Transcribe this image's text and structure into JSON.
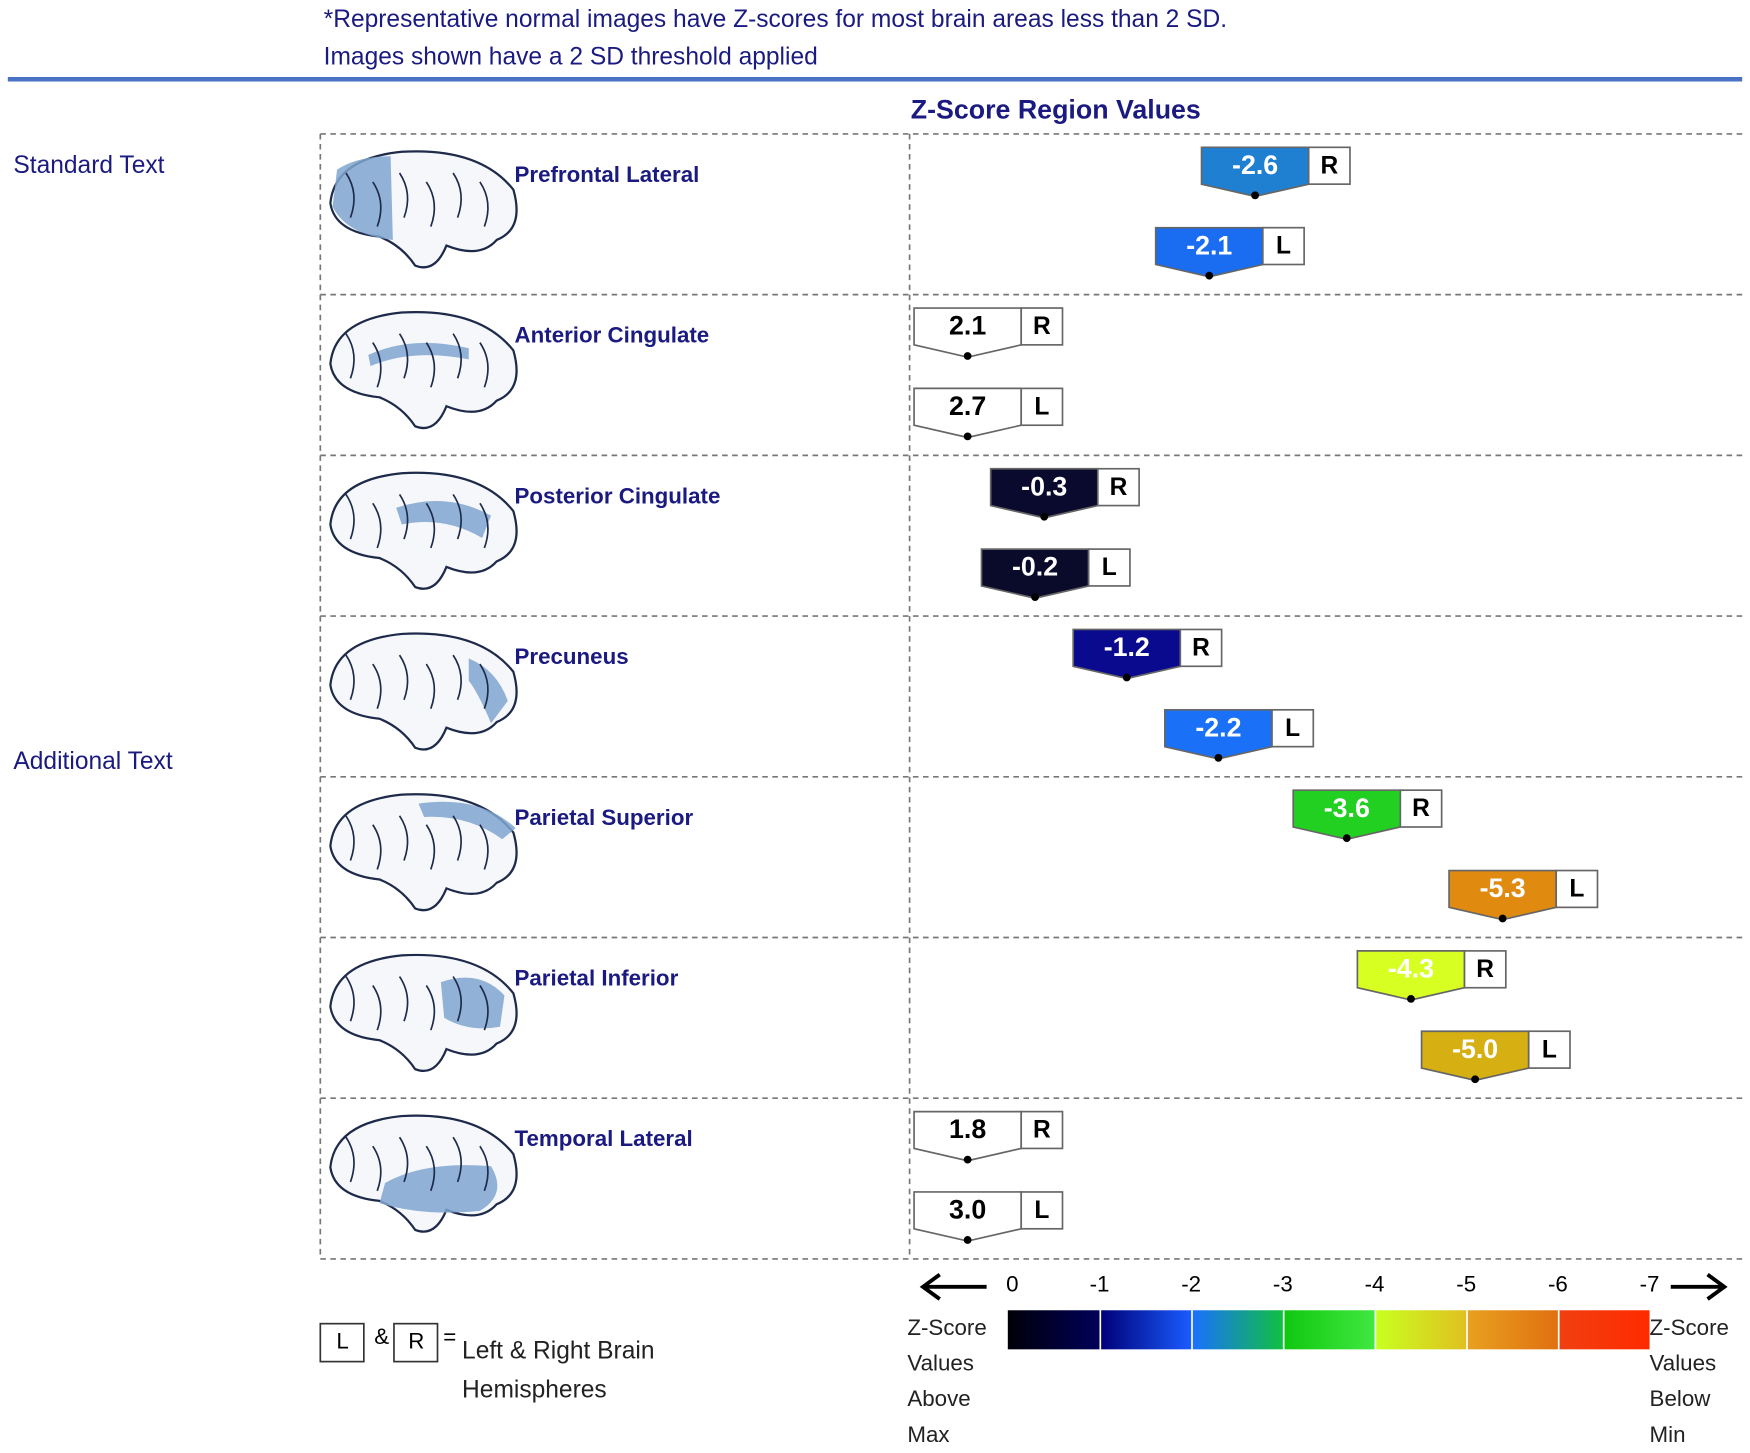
{
  "chart_data": {
    "type": "marker",
    "notes": [
      "*Representative normal images have Z-scores for most brain areas less than 2 SD.",
      "Images shown have a 2 SD threshold applied"
    ],
    "side_labels": [
      "Standard Text",
      "Additional Text"
    ],
    "title": "Z-Score Region Values",
    "categories": [
      "Prefrontal Lateral",
      "Anterior Cingulate",
      "Posterior Cingulate",
      "Precuneus",
      "Parietal Superior",
      "Parietal Inferior",
      "Temporal Lateral"
    ],
    "series": [
      {
        "name": "R",
        "values": [
          -2.6,
          2.1,
          -0.3,
          -1.2,
          -3.6,
          -4.3,
          1.8
        ],
        "value_labels": [
          "-2.6",
          "2.1",
          "-0.3",
          "-1.2",
          "-3.6",
          "-4.3",
          "1.8"
        ],
        "colors": [
          "#1f80d2",
          "#ffffff",
          "#0a0a2e",
          "#0a0a8e",
          "#22d022",
          "#d8ff22",
          "#ffffff"
        ]
      },
      {
        "name": "L",
        "values": [
          -2.1,
          2.7,
          -0.2,
          -2.2,
          -5.3,
          -5.0,
          3.0
        ],
        "value_labels": [
          "-2.1",
          "2.7",
          "-0.2",
          "-2.2",
          "-5.3",
          "-5.0",
          "3.0"
        ],
        "colors": [
          "#1a6cf0",
          "#ffffff",
          "#0a0a2a",
          "#1a70f6",
          "#e08a10",
          "#d6b012",
          "#ffffff"
        ]
      }
    ],
    "xlim": [
      0,
      -7
    ],
    "xticks": [
      0,
      -1,
      -2,
      -3,
      -4,
      -5,
      -6,
      -7
    ],
    "colorbar": [
      [
        "#000008",
        "#00005a"
      ],
      [
        "#00007a",
        "#1a5cff"
      ],
      [
        "#1a70ff",
        "#10c040"
      ],
      [
        "#10c810",
        "#40e840"
      ],
      [
        "#c8ff20",
        "#e0c020"
      ],
      [
        "#e8a020",
        "#e07010"
      ],
      [
        "#f04010",
        "#ff2a00"
      ]
    ],
    "colorbar_labels": [
      "Z-Score Values Above Max",
      "Z-Score Values Below Min"
    ],
    "legend": {
      "and": "&",
      "equals": "=",
      "text": "Left & Right Brain Hemispheres"
    }
  }
}
